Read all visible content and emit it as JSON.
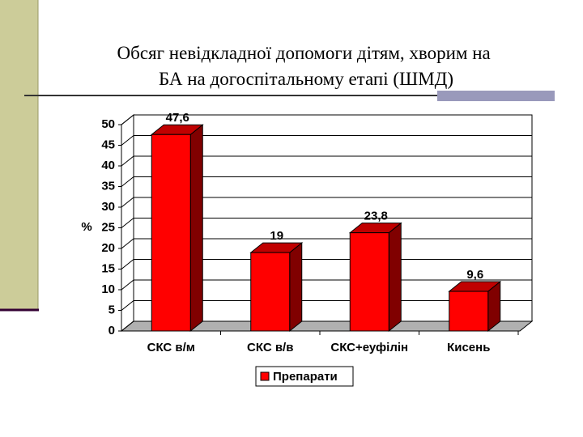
{
  "chart_data": {
    "type": "bar3d",
    "title": "Обсяг невідкладної допомоги дітям, хворим на БА на догоспітальному етапі (ШМД)",
    "y_label": "%",
    "categories": [
      "СКС в/м",
      "СКС в/в",
      "СКС+еуфілін",
      "Кисень"
    ],
    "series": [
      {
        "name": "Препарати",
        "color": "#ff0000",
        "values": [
          47.6,
          19,
          23.8,
          9.6
        ],
        "value_labels": [
          "47,6",
          "19",
          "23,8",
          "9,6"
        ]
      }
    ],
    "ylim": [
      0,
      50
    ],
    "yticks": [
      0,
      5,
      10,
      15,
      20,
      25,
      30,
      35,
      40,
      45,
      50
    ],
    "grid": true
  }
}
